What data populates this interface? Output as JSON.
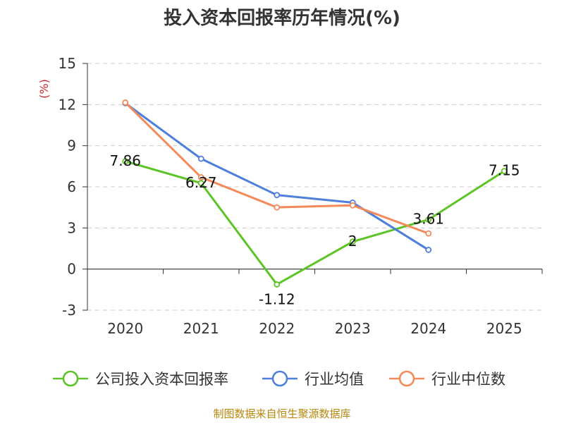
{
  "chart_data": {
    "type": "line",
    "title": "投入资本回报率历年情况(%)",
    "unit_label": "(%)",
    "categories": [
      "2020",
      "2021",
      "2022",
      "2023",
      "2024",
      "2025"
    ],
    "ylim": [
      -3,
      15
    ],
    "yticks": [
      15,
      12,
      9,
      6,
      3,
      0,
      -3
    ],
    "grid": true,
    "legend_position": "bottom",
    "series": [
      {
        "name": "公司投入资本回报率",
        "color": "#5cc424",
        "values": [
          7.86,
          6.27,
          -1.12,
          2,
          3.61,
          7.15
        ],
        "labels": [
          "7.86",
          "6.27",
          "-1.12",
          "2",
          "3.61",
          "7.15"
        ]
      },
      {
        "name": "行业均值",
        "color": "#4e7fdc",
        "values": [
          12.1,
          8.05,
          5.4,
          4.85,
          1.4,
          null
        ]
      },
      {
        "name": "行业中位数",
        "color": "#f38a5a",
        "values": [
          12.15,
          6.7,
          4.5,
          4.65,
          2.6,
          null
        ]
      }
    ]
  },
  "footer": {
    "source": "制图数据来自恒生聚源数据库"
  }
}
